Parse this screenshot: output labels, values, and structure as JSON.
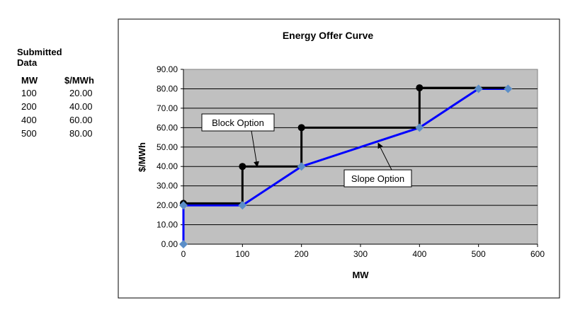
{
  "submitted_data": {
    "title": "Submitted Data",
    "headers": [
      "MW",
      "$/MWh"
    ],
    "rows": [
      [
        "100",
        "20.00"
      ],
      [
        "200",
        "40.00"
      ],
      [
        "400",
        "60.00"
      ],
      [
        "500",
        "80.00"
      ]
    ]
  },
  "chart_data": {
    "type": "line",
    "title": "Energy Offer Curve",
    "xlabel": "MW",
    "ylabel": "$/MWh",
    "xlim": [
      0,
      600
    ],
    "ylim": [
      0,
      90
    ],
    "xticks": [
      "0",
      "100",
      "200",
      "300",
      "400",
      "500",
      "600"
    ],
    "yticks": [
      "0.00",
      "10.00",
      "20.00",
      "30.00",
      "40.00",
      "50.00",
      "60.00",
      "70.00",
      "80.00",
      "90.00"
    ],
    "grid": "horizontal",
    "plot_background": "#c0c0c0",
    "series": [
      {
        "color": "#000000",
        "marker": "circle",
        "x": [
          0,
          100,
          100,
          200,
          200,
          400,
          400,
          550
        ],
        "y": [
          21,
          21,
          40,
          40,
          60,
          60,
          80.5,
          80.5
        ],
        "marker_points": [
          [
            0,
            21
          ],
          [
            100,
            40
          ],
          [
            200,
            60
          ],
          [
            400,
            80.5
          ]
        ]
      },
      {
        "color": "#0000ff",
        "marker": "diamond",
        "marker_color": "#5b8ec8",
        "x": [
          0,
          0,
          100,
          200,
          400,
          500,
          550
        ],
        "y": [
          0,
          20,
          20,
          40,
          60,
          80,
          80
        ]
      }
    ],
    "annotations": [
      {
        "text": "Block Option",
        "points_to": [
          125,
          40
        ]
      },
      {
        "text": "Slope Option",
        "points_to": [
          330,
          52
        ]
      }
    ]
  }
}
